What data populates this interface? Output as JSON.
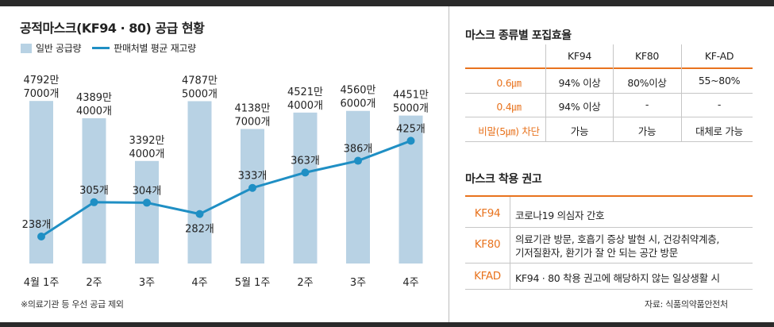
{
  "left": {
    "title": "공적마스크(KF94 · 80) 공급 현황",
    "legend_bar": "일반 공급량",
    "legend_line": "판매처별 평균 재고량",
    "footnote": "※의료기관 등 우선 공급 제외"
  },
  "chart_data": {
    "type": "bar",
    "categories": [
      "4월 1주",
      "2주",
      "3주",
      "4주",
      "5월 1주",
      "2주",
      "3주",
      "4주"
    ],
    "series": [
      {
        "name": "일반 공급량",
        "type": "bar",
        "values": [
          47927000,
          43894000,
          33924000,
          47875000,
          41387000,
          45214000,
          45606000,
          44515000
        ],
        "labels": [
          [
            "4792만",
            "7000개"
          ],
          [
            "4389만",
            "4000개"
          ],
          [
            "3392만",
            "4000개"
          ],
          [
            "4787만",
            "5000개"
          ],
          [
            "4138만",
            "7000개"
          ],
          [
            "4521만",
            "4000개"
          ],
          [
            "4560만",
            "6000개"
          ],
          [
            "4451만",
            "5000개"
          ]
        ]
      },
      {
        "name": "판매처별 평균 재고량",
        "type": "line",
        "values": [
          238,
          305,
          304,
          282,
          333,
          363,
          386,
          425
        ],
        "labels": [
          "238개",
          "305개",
          "304개",
          "282개",
          "333개",
          "363개",
          "386개",
          "425개"
        ]
      }
    ],
    "colors": {
      "bar": "#b8d2e4",
      "line": "#1f8fc4"
    }
  },
  "efficiency": {
    "title": "마스크 종류별 포집효율",
    "columns": [
      "KF94",
      "KF80",
      "KF-AD"
    ],
    "rows": [
      {
        "label": "0.6㎛",
        "values": [
          "94% 이상",
          "80%이상",
          "55~80%"
        ]
      },
      {
        "label": "0.4㎛",
        "values": [
          "94% 이상",
          "-",
          "-"
        ]
      },
      {
        "label": "비말(5㎛) 차단",
        "values": [
          "가능",
          "가능",
          "대체로 가능"
        ]
      }
    ]
  },
  "recommend": {
    "title": "마스크 착용 권고",
    "rows": [
      {
        "label": "KF94",
        "lines": [
          "코로나19 의심자 간호"
        ]
      },
      {
        "label": "KF80",
        "lines": [
          "의료기관 방문, 호흡기 증상 발현 시, 건강취약계층,",
          "기저질환자, 환기가 잘 안 되는 공간 방문"
        ]
      },
      {
        "label": "KFAD",
        "lines": [
          "KF94 · 80 착용 권고에 해당하지 않는 일상생활 시"
        ]
      }
    ]
  },
  "source": "자료: 식품의약품안전처",
  "accent_color": "#e8731e"
}
